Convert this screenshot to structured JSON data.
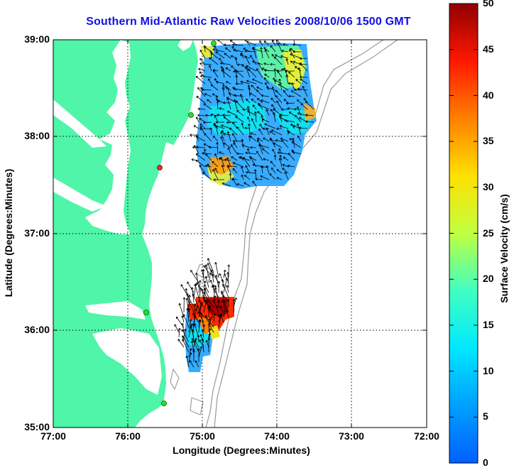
{
  "figure": {
    "title": "Southern Mid-Atlantic Raw Velocities 2008/10/06 1500 GMT",
    "xlabel": "Longitude (Degrees:Minutes)",
    "ylabel": "Latitude (Degrees:Minutes)",
    "colorbar_label": "Surface Velocity (cm/s)",
    "x_ticks": [
      "77:00",
      "76:00",
      "75:00",
      "74:00",
      "73:00",
      "72:00"
    ],
    "y_ticks": [
      "39:00",
      "38:00",
      "37:00",
      "36:00",
      "35:00"
    ],
    "colorbar_ticks": [
      "50",
      "45",
      "40",
      "35",
      "30",
      "25",
      "20",
      "15",
      "10",
      "5",
      "0"
    ],
    "colors": {
      "land": "#4ff5a8",
      "title": "#1010e0",
      "isobath": "#a0a0a0",
      "grid": "#000000",
      "station": "#29e029",
      "station_inactive": "#e03030"
    }
  },
  "chart_data": {
    "type": "heatmap",
    "title": "Southern Mid-Atlantic Raw Velocities 2008/10/06 1500 GMT",
    "xlabel": "Longitude (Degrees:Minutes)",
    "ylabel": "Latitude (Degrees:Minutes)",
    "xlim": [
      "77:00",
      "72:00"
    ],
    "ylim": [
      "35:00",
      "39:00"
    ],
    "grid": true,
    "colorbar": {
      "label": "Surface Velocity (cm/s)",
      "range": [
        0,
        50
      ],
      "colormap": "jet"
    },
    "regions": [
      {
        "lon_range": [
          "75:10",
          "73:35"
        ],
        "lat_range": [
          "37:30",
          "39:00"
        ],
        "speed_range_cm_s": [
          8,
          35
        ]
      },
      {
        "lon_range": [
          "75:15",
          "74:40"
        ],
        "lat_range": [
          "35:40",
          "36:25"
        ],
        "speed_range_cm_s": [
          8,
          50
        ]
      }
    ]
  }
}
